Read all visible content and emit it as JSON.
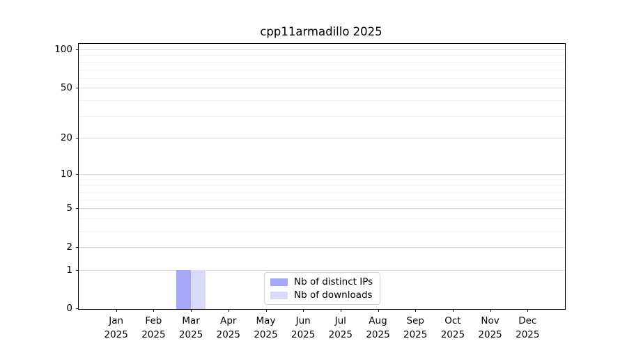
{
  "title": "cpp11armadillo 2025",
  "chart_data": {
    "type": "bar",
    "title": "cpp11armadillo 2025",
    "categories": [
      "Jan 2025",
      "Feb 2025",
      "Mar 2025",
      "Apr 2025",
      "May 2025",
      "Jun 2025",
      "Jul 2025",
      "Aug 2025",
      "Sep 2025",
      "Oct 2025",
      "Nov 2025",
      "Dec 2025"
    ],
    "series": [
      {
        "name": "Nb of distinct IPs",
        "color": "#a6a6f7",
        "values": [
          0,
          0,
          1,
          0,
          0,
          0,
          0,
          0,
          0,
          0,
          0,
          0
        ]
      },
      {
        "name": "Nb of downloads",
        "color": "#d9d9fa",
        "values": [
          0,
          0,
          1,
          0,
          0,
          0,
          0,
          0,
          0,
          0,
          0,
          0
        ]
      }
    ],
    "xlabel": "",
    "ylabel": "",
    "yscale": "log1p",
    "ylim": [
      0,
      110
    ],
    "yticks": [
      0,
      1,
      2,
      5,
      10,
      20,
      50,
      100
    ],
    "minor_yticks": [
      3,
      4,
      6,
      7,
      8,
      9,
      30,
      40,
      60,
      70,
      80,
      90
    ],
    "grid": "horizontal",
    "legend_position": "inside-bottom-center",
    "colors": {
      "major_grid": "#dcdcdc",
      "minor_grid": "#f0f0f0",
      "spine": "#000000",
      "text": "#000000",
      "background": "#ffffff"
    }
  }
}
